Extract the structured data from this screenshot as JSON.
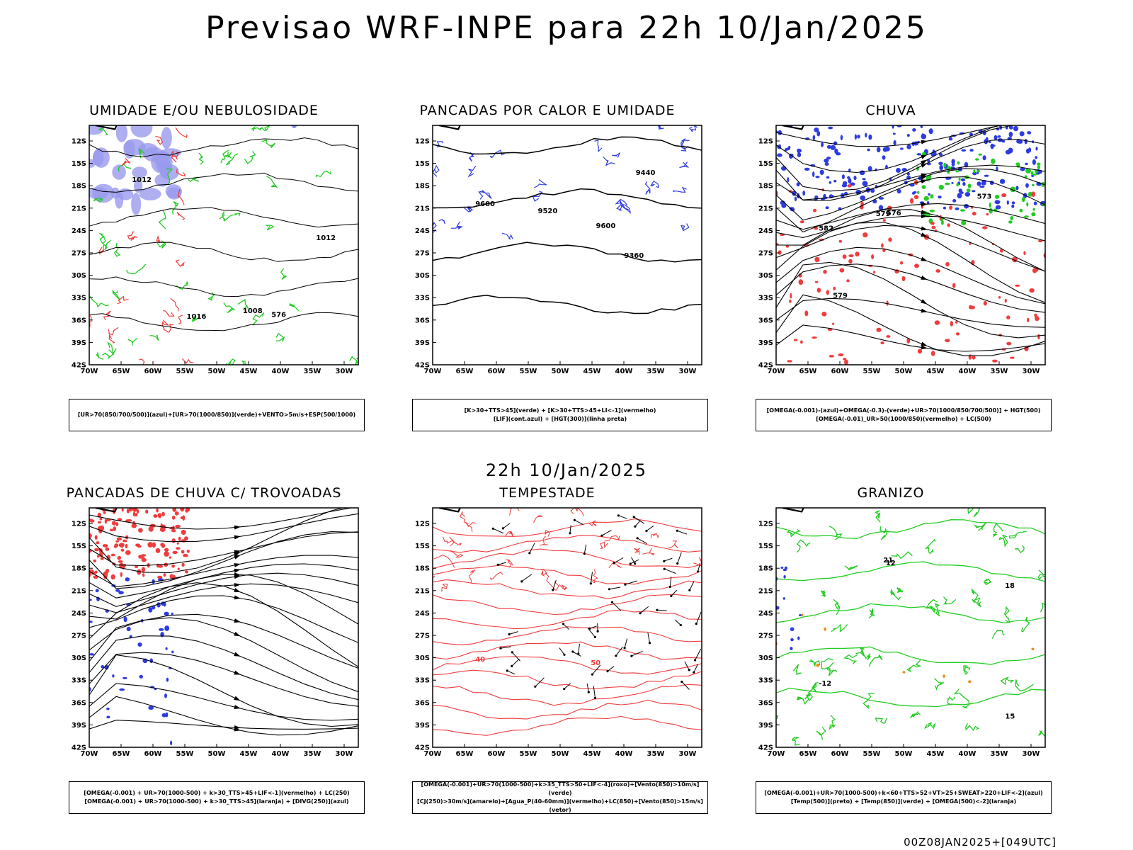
{
  "title": "Previsao WRF-INPE  para 22h 10/Jan/2025",
  "mid_title": "22h 10/Jan/2025",
  "footer": "00Z08JAN2025+[049UTC]",
  "y_ticks": [
    "12S",
    "15S",
    "18S",
    "21S",
    "24S",
    "27S",
    "30S",
    "33S",
    "36S",
    "39S",
    "42S"
  ],
  "x_ticks": [
    "70W",
    "65W",
    "60W",
    "55W",
    "50W",
    "45W",
    "40W",
    "35W",
    "30W"
  ],
  "colors": {
    "red": "#f03c3c",
    "green": "#22cc22",
    "blue": "#2c3ce0",
    "lavender": "#9a9aee",
    "darkgreen": "#1c4a40",
    "orange": "#f08a1a",
    "yellow": "#dedc3c"
  },
  "panels": [
    {
      "title": "UMIDADE E/OU NEBULOSIDADE",
      "caption": [
        "[UR>70(850/700/500)](azul)+[UR>70(1000/850)](verde)+VENTO>5m/s+ESP(500/1000)"
      ],
      "labels": [
        "1012",
        "1008",
        "1016",
        "576",
        "1012"
      ]
    },
    {
      "title": "PANCADAS POR CALOR E UMIDADE",
      "caption": [
        "[K>30+TTS>45](verde) + [K>30+TTS>45+LI<-1](vermelho)",
        "[LIF](cont.azul) + [HGT(300)](linha preta)"
      ],
      "labels": [
        "9600",
        "9520",
        "9440",
        "9360",
        "9600"
      ]
    },
    {
      "title": "CHUVA",
      "caption": [
        "[OMEGA(-0.001)-(azul)+OMEGA(-0.3)-(verde)+UR>70(1000/850/700/500)] + HGT(500)",
        "[OMEGA(-0.01)_UR>50(1000/850)(vermelho) + LC(500)"
      ],
      "labels": [
        "582",
        "579",
        "576",
        "573",
        "579"
      ]
    },
    {
      "title": "PANCADAS DE CHUVA C/ TROVOADAS",
      "caption": [
        "[OMEGA(-0.001) + UR>70(1000-500) + k>30_TTS>45+LIF<-1](vermelho) + LC(250)",
        "[OMEGA(-0.001) + UR>70(1000-500) + k>30_TTS>45](laranja) + [DIVG(250)](azul)"
      ],
      "labels": [
        "",
        "",
        "",
        "",
        ""
      ]
    },
    {
      "title": "TEMPESTADE",
      "caption": [
        "[OMEGA(-0.001)+UR>70(1000-500)+k>35_TTS>50+LIF<-4](roxo)+[Vento(850)>10m/s](verde)",
        "[CJ(250)>30m/s](amarelo)+[Agua_P(40-60mm)](vermelho)+LC(850)+[Vento(850)>15m/s](vetor)"
      ],
      "labels": [
        "40",
        "50",
        "",
        "",
        ""
      ]
    },
    {
      "title": "GRANIZO",
      "caption": [
        "[OMEGA(-0.001)+UR>70(1000-500)+k<60+TTS>52+VT>25+SWEAT>220+LIF<-2](azul)",
        "[Temp(500)](preto) + [Temp(850)](verde) + [OMEGA(500)<-2](laranja)"
      ],
      "labels": [
        "-12",
        "12",
        "15",
        "18",
        "21"
      ]
    }
  ]
}
